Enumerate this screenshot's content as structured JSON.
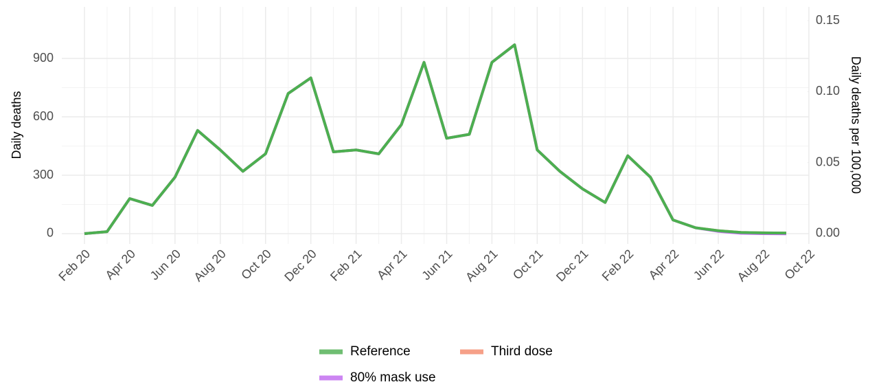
{
  "chart_data": {
    "type": "line",
    "y_label": "Daily deaths",
    "y2_label": "Daily deaths per 100,000",
    "x": [
      "2020-02",
      "2020-03",
      "2020-04",
      "2020-05",
      "2020-06",
      "2020-07",
      "2020-08",
      "2020-09",
      "2020-10",
      "2020-11",
      "2020-12",
      "2021-01",
      "2021-02",
      "2021-03",
      "2021-04",
      "2021-05",
      "2021-06",
      "2021-07",
      "2021-08",
      "2021-09",
      "2021-10",
      "2021-11",
      "2021-12",
      "2022-01",
      "2022-02",
      "2022-03",
      "2022-04",
      "2022-05",
      "2022-06",
      "2022-07",
      "2022-08",
      "2022-09"
    ],
    "series": [
      {
        "name": "Third dose",
        "color": "#f4896b",
        "values": [
          0,
          10,
          180,
          145,
          290,
          530,
          430,
          320,
          410,
          720,
          800,
          420,
          430,
          410,
          560,
          880,
          490,
          510,
          880,
          970,
          430,
          320,
          230,
          160,
          400,
          290,
          70,
          30,
          15,
          6,
          4,
          3
        ]
      },
      {
        "name": "80% mask use",
        "color": "#c067f0",
        "values": [
          0,
          10,
          180,
          145,
          290,
          530,
          430,
          320,
          410,
          720,
          800,
          420,
          430,
          410,
          560,
          880,
          490,
          510,
          880,
          970,
          430,
          320,
          230,
          160,
          400,
          290,
          70,
          30,
          12,
          2,
          0,
          -1
        ]
      },
      {
        "name": "Reference",
        "color": "#4caf50",
        "values": [
          0,
          10,
          180,
          145,
          290,
          530,
          430,
          320,
          410,
          720,
          800,
          420,
          430,
          410,
          560,
          880,
          490,
          510,
          880,
          970,
          430,
          320,
          230,
          160,
          400,
          290,
          70,
          30,
          15,
          6,
          4,
          3
        ]
      }
    ],
    "legend_order": [
      "Reference",
      "Third dose",
      "80% mask use"
    ],
    "xlim": [
      "2020-01",
      "2022-10"
    ],
    "xticks": [
      {
        "value": "2020-02",
        "label": "Feb 20"
      },
      {
        "value": "2020-04",
        "label": "Apr 20"
      },
      {
        "value": "2020-06",
        "label": "Jun 20"
      },
      {
        "value": "2020-08",
        "label": "Aug 20"
      },
      {
        "value": "2020-10",
        "label": "Oct 20"
      },
      {
        "value": "2020-12",
        "label": "Dec 20"
      },
      {
        "value": "2021-02",
        "label": "Feb 21"
      },
      {
        "value": "2021-04",
        "label": "Apr 21"
      },
      {
        "value": "2021-06",
        "label": "Jun 21"
      },
      {
        "value": "2021-08",
        "label": "Aug 21"
      },
      {
        "value": "2021-10",
        "label": "Oct 21"
      },
      {
        "value": "2021-12",
        "label": "Dec 21"
      },
      {
        "value": "2022-02",
        "label": "Feb 22"
      },
      {
        "value": "2022-04",
        "label": "Apr 22"
      },
      {
        "value": "2022-06",
        "label": "Jun 22"
      },
      {
        "value": "2022-08",
        "label": "Aug 22"
      },
      {
        "value": "2022-10",
        "label": "Oct 22"
      }
    ],
    "ylim": [
      -53,
      1165
    ],
    "yticks": [
      0,
      300,
      600,
      900
    ],
    "y2lim": [
      -0.0073,
      0.1597
    ],
    "y2ticks": [
      {
        "value": 0,
        "label": "0.00"
      },
      {
        "value": 0.05,
        "label": "0.05"
      },
      {
        "value": 0.1,
        "label": "0.10"
      },
      {
        "value": 0.15,
        "label": "0.15"
      }
    ],
    "grid": true
  }
}
